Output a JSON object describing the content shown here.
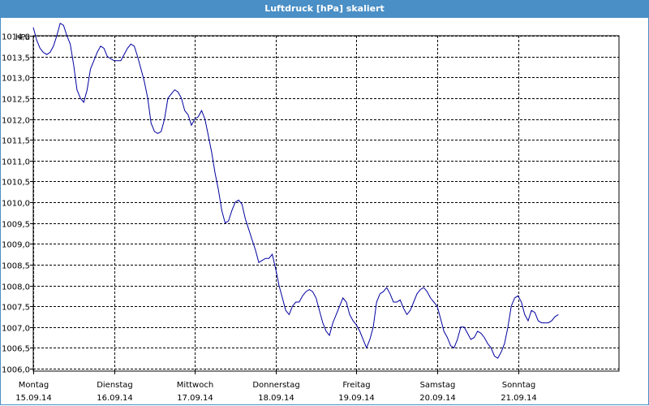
{
  "window": {
    "title": "Luftdruck [hPa] skaliert"
  },
  "chart_data": {
    "type": "line",
    "title": "Luftdruck [hPa] skaliert",
    "unit_label": "hPa",
    "ylim": [
      1006.0,
      1014.0
    ],
    "xlim": [
      "2014-09-15T00:00",
      "2014-09-22T06:00"
    ],
    "y_ticks": [
      "1014,0",
      "1013,5",
      "1013,0",
      "1012,5",
      "1012,0",
      "1011,5",
      "1011,0",
      "1010,5",
      "1010,0",
      "1009,5",
      "1009,0",
      "1008,5",
      "1008,0",
      "1007,5",
      "1007,0",
      "1006,5",
      "1006,0"
    ],
    "x_ticks": [
      {
        "day": "Montag",
        "date": "15.09.14",
        "t": "2014-09-15T00:00"
      },
      {
        "day": "Dienstag",
        "date": "16.09.14",
        "t": "2014-09-16T00:00"
      },
      {
        "day": "Mittwoch",
        "date": "17.09.14",
        "t": "2014-09-17T00:00"
      },
      {
        "day": "Donnerstag",
        "date": "18.09.14",
        "t": "2014-09-18T00:00"
      },
      {
        "day": "Freitag",
        "date": "19.09.14",
        "t": "2014-09-19T00:00"
      },
      {
        "day": "Samstag",
        "date": "20.09.14",
        "t": "2014-09-20T00:00"
      },
      {
        "day": "Sonntag",
        "date": "21.09.14",
        "t": "2014-09-21T00:00"
      }
    ],
    "grid": true,
    "series": [
      {
        "color": "#0000a0",
        "points": [
          [
            "2014-09-15T00:00",
            1014.2
          ],
          [
            "2014-09-15T01:00",
            1013.9
          ],
          [
            "2014-09-15T02:00",
            1013.7
          ],
          [
            "2014-09-15T03:00",
            1013.6
          ],
          [
            "2014-09-15T04:00",
            1013.55
          ],
          [
            "2014-09-15T05:00",
            1013.6
          ],
          [
            "2014-09-15T06:00",
            1013.75
          ],
          [
            "2014-09-15T07:00",
            1014.0
          ],
          [
            "2014-09-15T08:00",
            1014.3
          ],
          [
            "2014-09-15T09:00",
            1014.25
          ],
          [
            "2014-09-15T10:00",
            1014.0
          ],
          [
            "2014-09-15T11:00",
            1013.8
          ],
          [
            "2014-09-15T12:00",
            1013.3
          ],
          [
            "2014-09-15T13:00",
            1012.7
          ],
          [
            "2014-09-15T14:00",
            1012.5
          ],
          [
            "2014-09-15T15:00",
            1012.4
          ],
          [
            "2014-09-15T16:00",
            1012.7
          ],
          [
            "2014-09-15T17:00",
            1013.2
          ],
          [
            "2014-09-15T18:00",
            1013.4
          ],
          [
            "2014-09-15T19:00",
            1013.6
          ],
          [
            "2014-09-15T20:00",
            1013.75
          ],
          [
            "2014-09-15T21:00",
            1013.7
          ],
          [
            "2014-09-15T22:00",
            1013.5
          ],
          [
            "2014-09-15T23:00",
            1013.45
          ],
          [
            "2014-09-16T00:00",
            1013.4
          ],
          [
            "2014-09-16T01:00",
            1013.4
          ],
          [
            "2014-09-16T02:00",
            1013.4
          ],
          [
            "2014-09-16T03:00",
            1013.55
          ],
          [
            "2014-09-16T04:00",
            1013.7
          ],
          [
            "2014-09-16T05:00",
            1013.8
          ],
          [
            "2014-09-16T06:00",
            1013.75
          ],
          [
            "2014-09-16T07:00",
            1013.5
          ],
          [
            "2014-09-16T08:00",
            1013.2
          ],
          [
            "2014-09-16T09:00",
            1012.9
          ],
          [
            "2014-09-16T10:00",
            1012.5
          ],
          [
            "2014-09-16T11:00",
            1011.9
          ],
          [
            "2014-09-16T12:00",
            1011.7
          ],
          [
            "2014-09-16T13:00",
            1011.65
          ],
          [
            "2014-09-16T14:00",
            1011.7
          ],
          [
            "2014-09-16T15:00",
            1012.0
          ],
          [
            "2014-09-16T16:00",
            1012.5
          ],
          [
            "2014-09-16T17:00",
            1012.6
          ],
          [
            "2014-09-16T18:00",
            1012.7
          ],
          [
            "2014-09-16T19:00",
            1012.65
          ],
          [
            "2014-09-16T20:00",
            1012.5
          ],
          [
            "2014-09-16T21:00",
            1012.2
          ],
          [
            "2014-09-16T22:00",
            1012.1
          ],
          [
            "2014-09-16T23:00",
            1011.85
          ],
          [
            "2014-09-17T00:00",
            1012.0
          ],
          [
            "2014-09-17T01:00",
            1012.05
          ],
          [
            "2014-09-17T02:00",
            1012.2
          ],
          [
            "2014-09-17T03:00",
            1012.0
          ],
          [
            "2014-09-17T04:00",
            1011.6
          ],
          [
            "2014-09-17T05:00",
            1011.2
          ],
          [
            "2014-09-17T06:00",
            1010.7
          ],
          [
            "2014-09-17T07:00",
            1010.3
          ],
          [
            "2014-09-17T08:00",
            1009.8
          ],
          [
            "2014-09-17T09:00",
            1009.5
          ],
          [
            "2014-09-17T10:00",
            1009.55
          ],
          [
            "2014-09-17T11:00",
            1009.8
          ],
          [
            "2014-09-17T12:00",
            1010.0
          ],
          [
            "2014-09-17T13:00",
            1010.05
          ],
          [
            "2014-09-17T14:00",
            1009.95
          ],
          [
            "2014-09-17T15:00",
            1009.6
          ],
          [
            "2014-09-17T16:00",
            1009.35
          ],
          [
            "2014-09-17T17:00",
            1009.1
          ],
          [
            "2014-09-17T18:00",
            1008.85
          ],
          [
            "2014-09-17T19:00",
            1008.55
          ],
          [
            "2014-09-17T20:00",
            1008.6
          ],
          [
            "2014-09-17T21:00",
            1008.65
          ],
          [
            "2014-09-17T22:00",
            1008.65
          ],
          [
            "2014-09-17T23:00",
            1008.75
          ],
          [
            "2014-09-18T00:00",
            1008.4
          ],
          [
            "2014-09-18T01:00",
            1008.0
          ],
          [
            "2014-09-18T02:00",
            1007.7
          ],
          [
            "2014-09-18T03:00",
            1007.4
          ],
          [
            "2014-09-18T04:00",
            1007.3
          ],
          [
            "2014-09-18T05:00",
            1007.5
          ],
          [
            "2014-09-18T06:00",
            1007.6
          ],
          [
            "2014-09-18T07:00",
            1007.6
          ],
          [
            "2014-09-18T08:00",
            1007.75
          ],
          [
            "2014-09-18T09:00",
            1007.85
          ],
          [
            "2014-09-18T10:00",
            1007.9
          ],
          [
            "2014-09-18T11:00",
            1007.85
          ],
          [
            "2014-09-18T12:00",
            1007.7
          ],
          [
            "2014-09-18T13:00",
            1007.4
          ],
          [
            "2014-09-18T14:00",
            1007.1
          ],
          [
            "2014-09-18T15:00",
            1006.9
          ],
          [
            "2014-09-18T16:00",
            1006.8
          ],
          [
            "2014-09-18T17:00",
            1007.1
          ],
          [
            "2014-09-18T18:00",
            1007.3
          ],
          [
            "2014-09-18T19:00",
            1007.5
          ],
          [
            "2014-09-18T20:00",
            1007.7
          ],
          [
            "2014-09-18T21:00",
            1007.6
          ],
          [
            "2014-09-18T22:00",
            1007.3
          ],
          [
            "2014-09-18T23:00",
            1007.15
          ],
          [
            "2014-09-19T00:00",
            1007.05
          ],
          [
            "2014-09-19T01:00",
            1006.9
          ],
          [
            "2014-09-19T02:00",
            1006.7
          ],
          [
            "2014-09-19T03:00",
            1006.5
          ],
          [
            "2014-09-19T04:00",
            1006.7
          ],
          [
            "2014-09-19T05:00",
            1007.0
          ],
          [
            "2014-09-19T06:00",
            1007.6
          ],
          [
            "2014-09-19T07:00",
            1007.8
          ],
          [
            "2014-09-19T08:00",
            1007.85
          ],
          [
            "2014-09-19T09:00",
            1007.95
          ],
          [
            "2014-09-19T10:00",
            1007.8
          ],
          [
            "2014-09-19T11:00",
            1007.6
          ],
          [
            "2014-09-19T12:00",
            1007.6
          ],
          [
            "2014-09-19T13:00",
            1007.65
          ],
          [
            "2014-09-19T14:00",
            1007.45
          ],
          [
            "2014-09-19T15:00",
            1007.3
          ],
          [
            "2014-09-19T16:00",
            1007.4
          ],
          [
            "2014-09-19T17:00",
            1007.6
          ],
          [
            "2014-09-19T18:00",
            1007.8
          ],
          [
            "2014-09-19T19:00",
            1007.9
          ],
          [
            "2014-09-19T20:00",
            1007.95
          ],
          [
            "2014-09-19T21:00",
            1007.85
          ],
          [
            "2014-09-19T22:00",
            1007.7
          ],
          [
            "2014-09-19T23:00",
            1007.6
          ],
          [
            "2014-09-20T00:00",
            1007.5
          ],
          [
            "2014-09-20T01:00",
            1007.2
          ],
          [
            "2014-09-20T02:00",
            1006.9
          ],
          [
            "2014-09-20T03:00",
            1006.75
          ],
          [
            "2014-09-20T04:00",
            1006.55
          ],
          [
            "2014-09-20T05:00",
            1006.5
          ],
          [
            "2014-09-20T06:00",
            1006.7
          ],
          [
            "2014-09-20T07:00",
            1007.0
          ],
          [
            "2014-09-20T08:00",
            1007.0
          ],
          [
            "2014-09-20T09:00",
            1006.85
          ],
          [
            "2014-09-20T10:00",
            1006.7
          ],
          [
            "2014-09-20T11:00",
            1006.75
          ],
          [
            "2014-09-20T12:00",
            1006.9
          ],
          [
            "2014-09-20T13:00",
            1006.85
          ],
          [
            "2014-09-20T14:00",
            1006.75
          ],
          [
            "2014-09-20T15:00",
            1006.6
          ],
          [
            "2014-09-20T16:00",
            1006.5
          ],
          [
            "2014-09-20T17:00",
            1006.3
          ],
          [
            "2014-09-20T18:00",
            1006.25
          ],
          [
            "2014-09-20T19:00",
            1006.4
          ],
          [
            "2014-09-20T20:00",
            1006.6
          ],
          [
            "2014-09-20T21:00",
            1007.0
          ],
          [
            "2014-09-20T22:00",
            1007.5
          ],
          [
            "2014-09-20T23:00",
            1007.7
          ],
          [
            "2014-09-21T00:00",
            1007.75
          ],
          [
            "2014-09-21T01:00",
            1007.6
          ],
          [
            "2014-09-21T02:00",
            1007.3
          ],
          [
            "2014-09-21T03:00",
            1007.15
          ],
          [
            "2014-09-21T04:00",
            1007.4
          ],
          [
            "2014-09-21T05:00",
            1007.35
          ],
          [
            "2014-09-21T06:00",
            1007.15
          ],
          [
            "2014-09-21T07:00",
            1007.1
          ],
          [
            "2014-09-21T08:00",
            1007.1
          ],
          [
            "2014-09-21T09:00",
            1007.1
          ],
          [
            "2014-09-21T10:00",
            1007.15
          ],
          [
            "2014-09-21T11:00",
            1007.25
          ],
          [
            "2014-09-21T12:00",
            1007.3
          ]
        ]
      }
    ]
  }
}
